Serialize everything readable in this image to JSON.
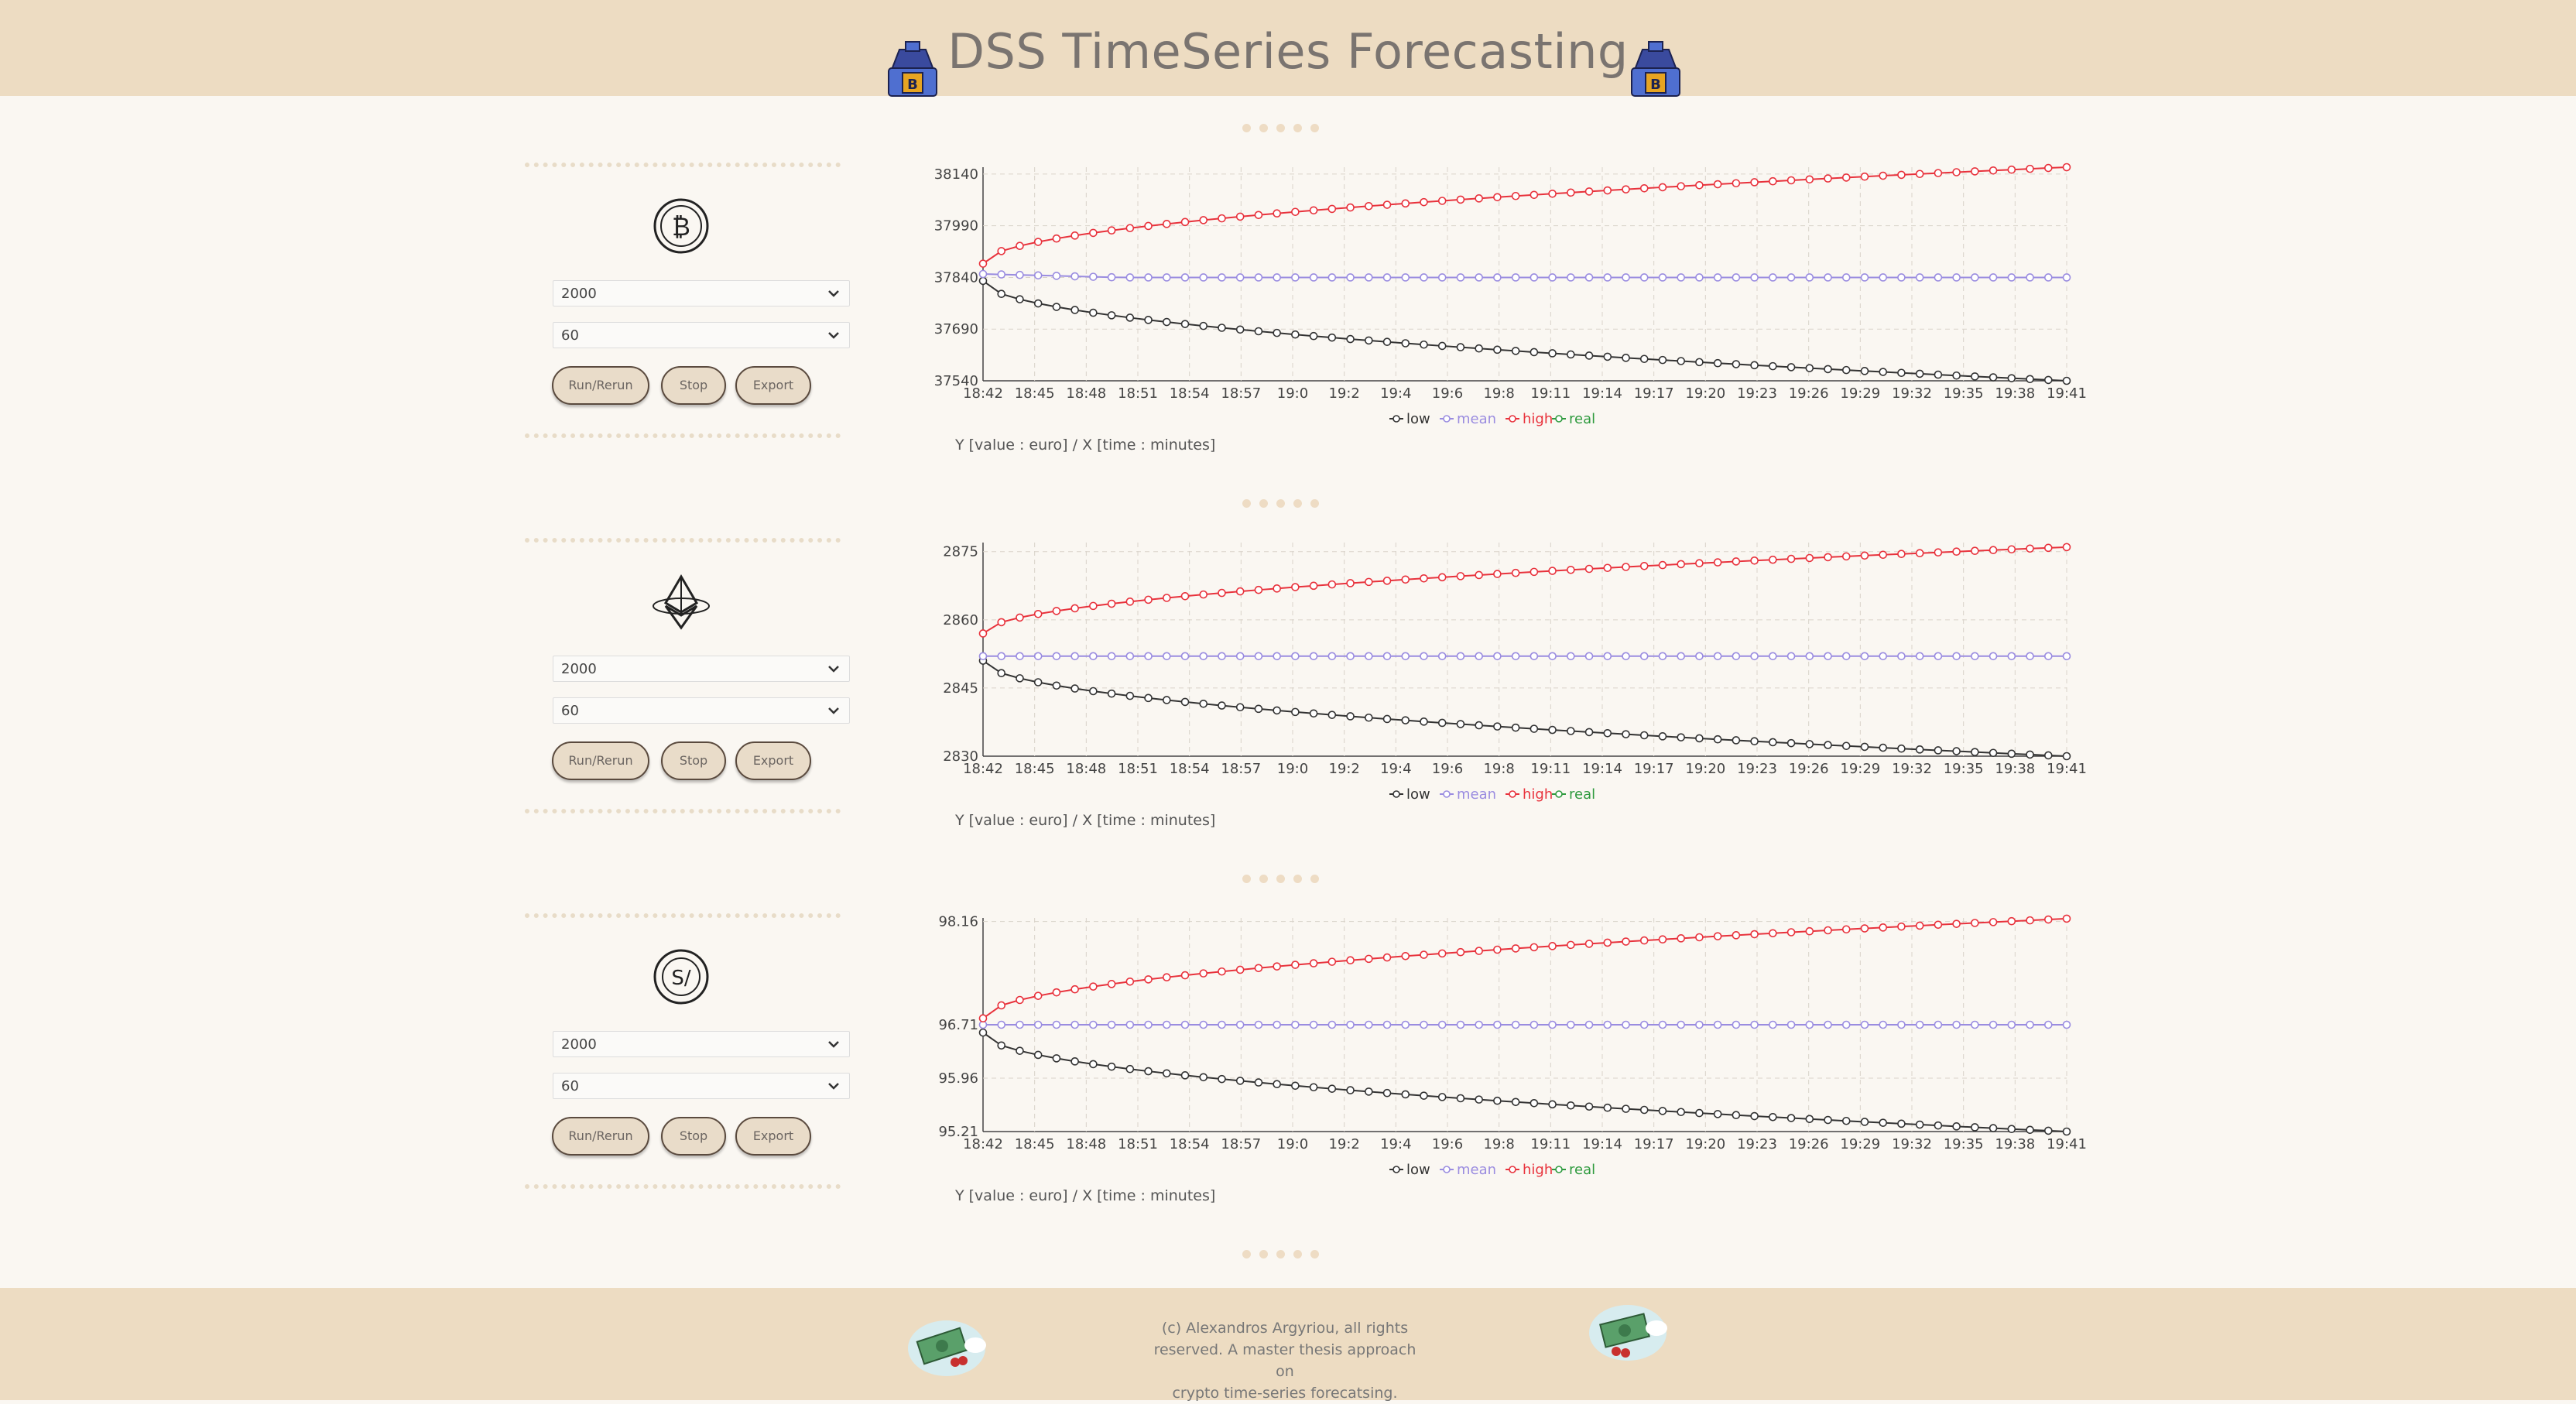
{
  "header": {
    "title": "DSS TimeSeries Forecasting"
  },
  "footer": {
    "line1": "(c) Alexandros Argyriou, all rights",
    "line2": "reserved. A master thesis approach on",
    "line3": "crypto time-series forecatsing."
  },
  "colors": {
    "header_bg": "#eddcc2",
    "low": "#333333",
    "mean": "#9a8ce0",
    "high": "#e8323c",
    "real": "#2e9a3e"
  },
  "legend": [
    "low",
    "mean",
    "high",
    "real"
  ],
  "axis_caption": "Y [value : euro] / X [time : minutes]",
  "panels": [
    {
      "icon": "bitcoin-icon",
      "size_select": "2000",
      "interval_select": "60",
      "buttons": {
        "run": "Run/Rerun",
        "stop": "Stop",
        "export": "Export"
      }
    },
    {
      "icon": "ethereum-icon",
      "size_select": "2000",
      "interval_select": "60",
      "buttons": {
        "run": "Run/Rerun",
        "stop": "Stop",
        "export": "Export"
      }
    },
    {
      "icon": "solana-coin-icon",
      "size_select": "2000",
      "interval_select": "60",
      "buttons": {
        "run": "Run/Rerun",
        "stop": "Stop",
        "export": "Export"
      }
    }
  ],
  "chart_data": [
    {
      "type": "line",
      "x_ticks": [
        "18:42",
        "18:45",
        "18:48",
        "18:51",
        "18:54",
        "18:57",
        "19:0",
        "19:2",
        "19:4",
        "19:6",
        "19:8",
        "19:11",
        "19:14",
        "19:17",
        "19:20",
        "19:23",
        "19:26",
        "19:29",
        "19:32",
        "19:35",
        "19:38",
        "19:41"
      ],
      "y_ticks": [
        37540,
        37690,
        37840,
        37990,
        38140
      ],
      "ylim": [
        37540,
        38160
      ],
      "points": 60,
      "series": [
        {
          "name": "low",
          "start": 37830,
          "end": 37540
        },
        {
          "name": "mean",
          "start": 37850,
          "end": 37840
        },
        {
          "name": "high",
          "start": 37880,
          "end": 38160
        }
      ],
      "xlabel": "",
      "ylabel": ""
    },
    {
      "type": "line",
      "x_ticks": [
        "18:42",
        "18:45",
        "18:48",
        "18:51",
        "18:54",
        "18:57",
        "19:0",
        "19:2",
        "19:4",
        "19:6",
        "19:8",
        "19:11",
        "19:14",
        "19:17",
        "19:20",
        "19:23",
        "19:26",
        "19:29",
        "19:32",
        "19:35",
        "19:38",
        "19:41"
      ],
      "y_ticks": [
        2830,
        2845,
        2860,
        2875
      ],
      "ylim": [
        2830,
        2877
      ],
      "points": 60,
      "series": [
        {
          "name": "low",
          "start": 2851,
          "end": 2830
        },
        {
          "name": "mean",
          "start": 2852,
          "end": 2852
        },
        {
          "name": "high",
          "start": 2857,
          "end": 2876
        }
      ],
      "xlabel": "",
      "ylabel": ""
    },
    {
      "type": "line",
      "x_ticks": [
        "18:42",
        "18:45",
        "18:48",
        "18:51",
        "18:54",
        "18:57",
        "19:0",
        "19:2",
        "19:4",
        "19:6",
        "19:8",
        "19:11",
        "19:14",
        "19:17",
        "19:20",
        "19:23",
        "19:26",
        "19:29",
        "19:32",
        "19:35",
        "19:38",
        "19:41"
      ],
      "y_ticks": [
        95.21,
        95.96,
        96.71,
        98.16
      ],
      "ylim": [
        95.21,
        98.21
      ],
      "points": 60,
      "series": [
        {
          "name": "low",
          "start": 96.6,
          "end": 95.21
        },
        {
          "name": "mean",
          "start": 96.71,
          "end": 96.71
        },
        {
          "name": "high",
          "start": 96.8,
          "end": 98.2
        }
      ],
      "xlabel": "",
      "ylabel": ""
    }
  ]
}
